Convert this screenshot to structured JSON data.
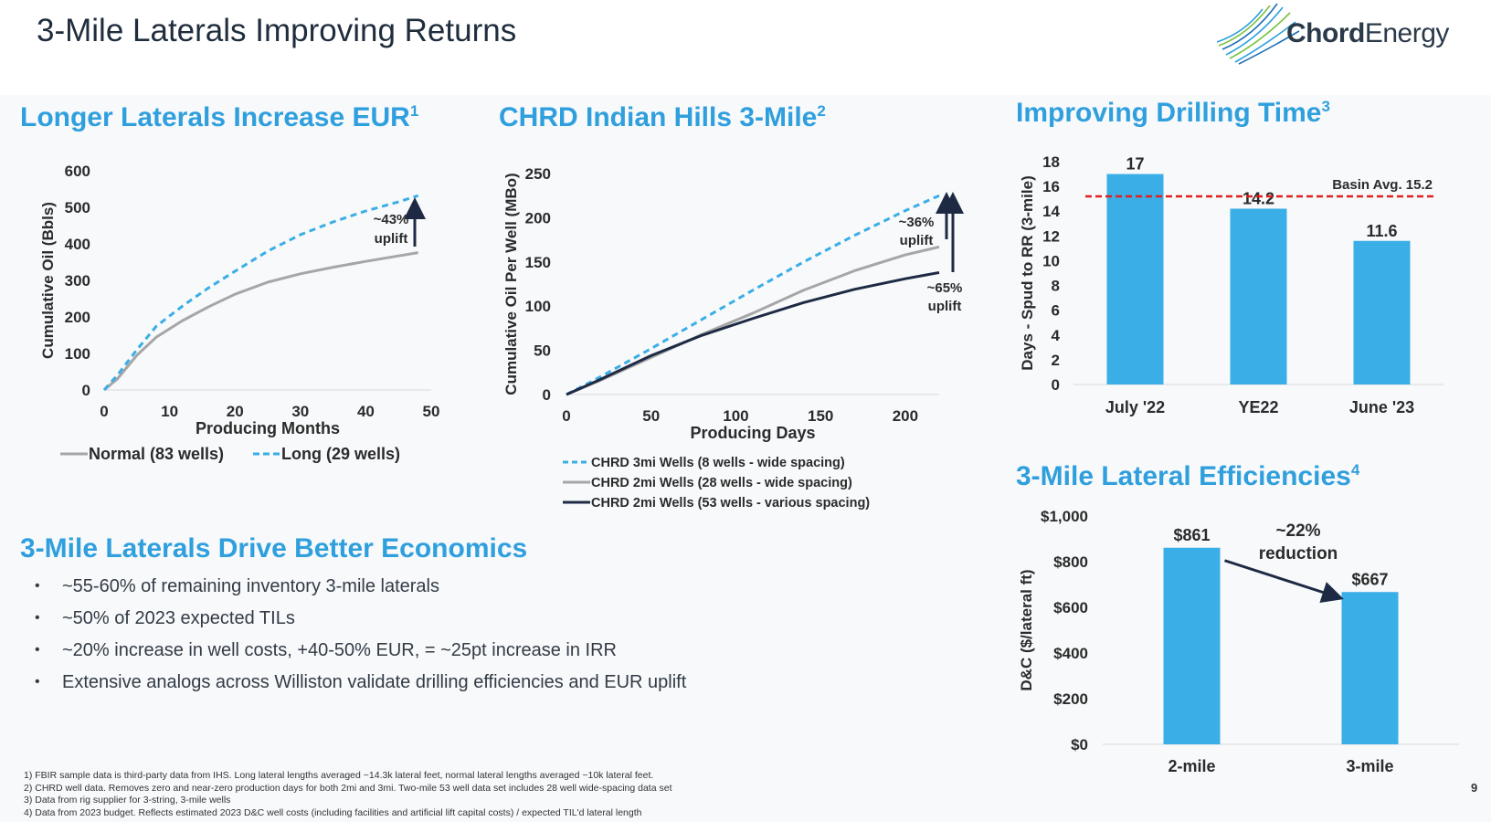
{
  "slide": {
    "title": "3-Mile Laterals Improving Returns",
    "logo_bold": "Chord",
    "logo_light": "Energy",
    "page_number": "9"
  },
  "sections": {
    "eur": {
      "title": "Longer Laterals Increase EUR",
      "sup": "1"
    },
    "indian": {
      "title": "CHRD Indian Hills 3-Mile",
      "sup": "2"
    },
    "drilling": {
      "title": "Improving Drilling Time",
      "sup": "3"
    },
    "economics": {
      "title": "3-Mile Laterals Drive Better Economics"
    },
    "efficiencies": {
      "title": "3-Mile Lateral Efficiencies",
      "sup": "4"
    }
  },
  "bullets": [
    "~55-60% of remaining inventory 3-mile laterals",
    "~50% of 2023 expected TILs",
    "~20% increase in well costs, +40-50% EUR, = ~25pt increase in IRR",
    "Extensive analogs across Williston validate drilling efficiencies and EUR uplift"
  ],
  "footnotes": [
    "1)   FBIR sample data is third-party data from IHS. Long lateral lengths averaged ~14.3k lateral feet, normal lateral lengths averaged ~10k lateral feet.",
    "2)   CHRD well data. Removes zero and near-zero production days for both 2mi and 3mi. Two-mile 53 well data set includes 28 well wide-spacing data set",
    "3)   Data from rig supplier for 3-string, 3-mile wells",
    "4)   Data from 2023 budget. Reflects estimated 2023 D&C well costs (including facilities and artificial lift capital costs) / expected TIL'd lateral length"
  ],
  "colors": {
    "accent": "#2f9fdd",
    "bar": "#3aaee6",
    "basin_line": "#e02020",
    "navy": "#1e2a44",
    "gray": "#a6a6a6"
  },
  "chart_data": [
    {
      "id": "eur",
      "type": "line",
      "xlabel": "Producing Months",
      "ylabel": "Cumulative Oil (Bbls)",
      "xlim": [
        0,
        50
      ],
      "ylim": [
        0,
        600
      ],
      "xticks": [
        0,
        10,
        20,
        30,
        40,
        50
      ],
      "yticks": [
        0,
        100,
        200,
        300,
        400,
        500,
        600
      ],
      "series": [
        {
          "name": "Normal (83 wells)",
          "style": "solid",
          "color": "#a6a6a6",
          "x": [
            0,
            2,
            5,
            8,
            12,
            16,
            20,
            25,
            30,
            35,
            40,
            45,
            48
          ],
          "y": [
            0,
            30,
            95,
            145,
            190,
            228,
            262,
            295,
            318,
            336,
            352,
            367,
            376
          ]
        },
        {
          "name": "Long (29 wells)",
          "style": "dashed",
          "color": "#3aaee6",
          "x": [
            0,
            2,
            5,
            8,
            12,
            16,
            20,
            25,
            30,
            35,
            40,
            45,
            48
          ],
          "y": [
            0,
            40,
            110,
            175,
            230,
            280,
            325,
            380,
            425,
            460,
            490,
            515,
            532
          ]
        }
      ],
      "annotation": {
        "line1": "~43%",
        "line2": "uplift"
      }
    },
    {
      "id": "indian_hills",
      "type": "line",
      "xlabel": "Producing Days",
      "ylabel": "Cumulative Oil Per Well (MBo)",
      "xlim": [
        0,
        220
      ],
      "ylim": [
        0,
        250
      ],
      "xticks": [
        0,
        50,
        100,
        150,
        200
      ],
      "yticks": [
        0,
        50,
        100,
        150,
        200,
        250
      ],
      "series": [
        {
          "name": "CHRD 3mi Wells (8 wells - wide spacing)",
          "style": "dashed",
          "color": "#3aaee6",
          "x": [
            0,
            20,
            50,
            80,
            110,
            140,
            170,
            200,
            220
          ],
          "y": [
            0,
            20,
            52,
            85,
            118,
            150,
            180,
            208,
            225
          ]
        },
        {
          "name": "CHRD 2mi Wells (28 wells - wide spacing)",
          "style": "solid",
          "color": "#a6a6a6",
          "x": [
            0,
            20,
            50,
            80,
            110,
            140,
            170,
            200,
            220
          ],
          "y": [
            0,
            16,
            42,
            68,
            92,
            118,
            140,
            158,
            167
          ]
        },
        {
          "name": "CHRD 2mi Wells (53 wells - various spacing)",
          "style": "solid",
          "color": "#1e2a44",
          "x": [
            0,
            20,
            50,
            80,
            110,
            140,
            170,
            200,
            220
          ],
          "y": [
            0,
            17,
            44,
            67,
            86,
            104,
            119,
            131,
            138
          ]
        }
      ],
      "annotations": [
        {
          "line1": "~36%",
          "line2": "uplift"
        },
        {
          "line1": "~65%",
          "line2": "uplift"
        }
      ]
    },
    {
      "id": "drilling_time",
      "type": "bar",
      "ylabel": "Days - Spud to RR (3-mile)",
      "categories": [
        "July '22",
        "YE22",
        "June '23"
      ],
      "values": [
        17,
        14.2,
        11.6
      ],
      "value_labels": [
        "17",
        "14.2",
        "11.6"
      ],
      "ylim": [
        0,
        18
      ],
      "yticks": [
        "0",
        "2",
        "4",
        "6",
        "8",
        "10",
        "12",
        "14",
        "16",
        "18"
      ],
      "reference_line": {
        "value": 15.2,
        "label": "Basin Avg. 15.2"
      }
    },
    {
      "id": "lateral_efficiencies",
      "type": "bar",
      "ylabel": "D&C ($/lateral ft)",
      "categories": [
        "2-mile",
        "3-mile"
      ],
      "values": [
        861,
        667
      ],
      "value_labels": [
        "$861",
        "$667"
      ],
      "ylim": [
        0,
        1000
      ],
      "yticks": [
        "$0",
        "$200",
        "$400",
        "$600",
        "$800",
        "$1,000"
      ],
      "annotation": {
        "line1": "~22%",
        "line2": "reduction"
      }
    }
  ]
}
